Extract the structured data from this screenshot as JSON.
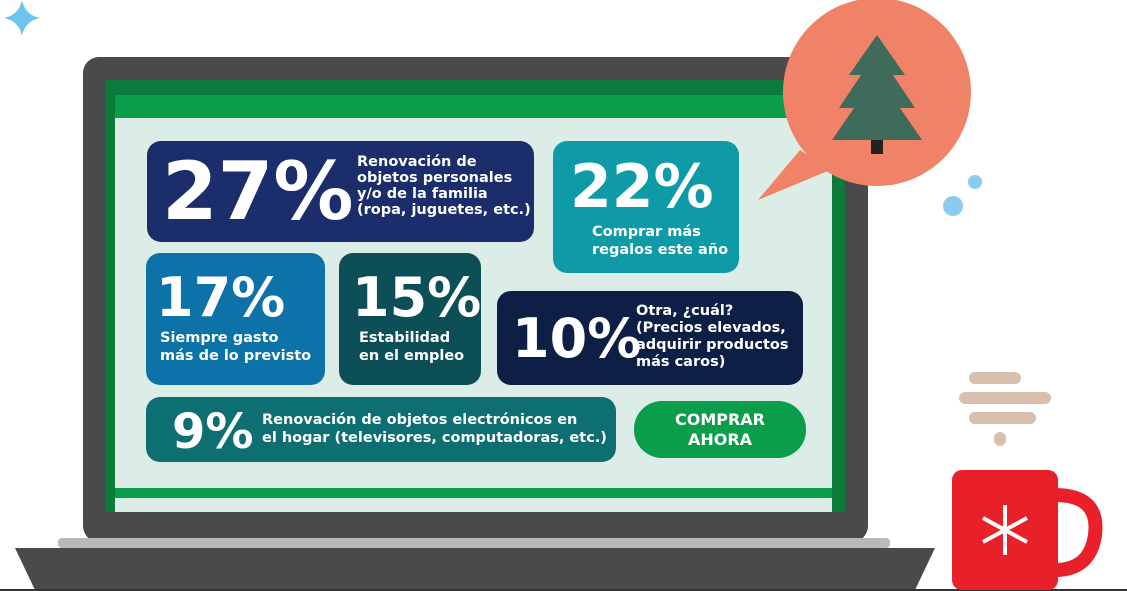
{
  "cards": [
    {
      "figure": "27%",
      "lines": [
        "Renovación de",
        "objetos personales",
        "y/o de la familia",
        "(ropa, juguetes, etc.)"
      ]
    },
    {
      "figure": "22%",
      "lines": [
        "Comprar más",
        "regalos este año"
      ]
    },
    {
      "figure": "17%",
      "lines": [
        "Siempre gasto",
        "más de lo previsto"
      ]
    },
    {
      "figure": "15%",
      "lines": [
        "Estabilidad",
        "en el empleo"
      ]
    },
    {
      "figure": "10%",
      "lines": [
        "Otra, ¿cuál?",
        "(Precios elevados,",
        "adquirir productos",
        "más caros)"
      ]
    },
    {
      "figure": "9%",
      "lines": [
        "Renovación de objetos electrónicos en",
        "el hogar (televisores, computadoras, etc.)"
      ]
    }
  ],
  "button": {
    "lines": [
      "COMPRAR",
      "AHORA"
    ]
  }
}
